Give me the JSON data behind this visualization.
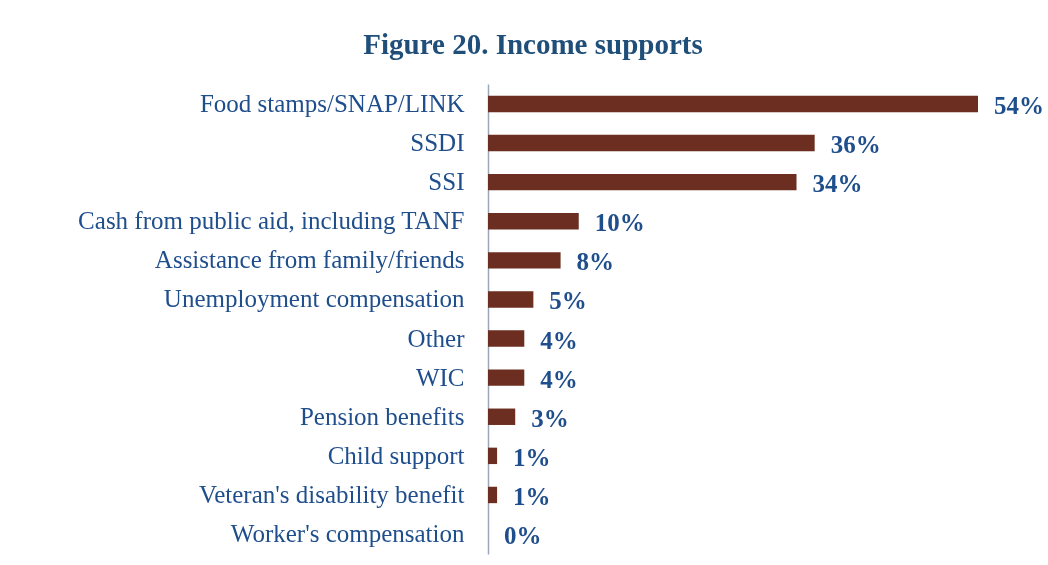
{
  "chart_data": {
    "type": "bar",
    "orientation": "horizontal",
    "title": "Figure 20. Income supports",
    "categories": [
      "Food stamps/SNAP/LINK",
      "SSDI",
      "SSI",
      "Cash from public aid, including TANF",
      "Assistance from family/friends",
      "Unemployment compensation",
      "Other",
      "WIC",
      "Pension benefits",
      "Child support",
      "Veteran's disability benefit",
      "Worker's compensation"
    ],
    "values": [
      54,
      36,
      34,
      10,
      8,
      5,
      4,
      4,
      3,
      1,
      1,
      0
    ],
    "value_labels": [
      "54%",
      "36%",
      "34%",
      "10%",
      "8%",
      "5%",
      "4%",
      "4%",
      "3%",
      "1%",
      "1%",
      "0%"
    ],
    "color": "#6b2e20"
  }
}
